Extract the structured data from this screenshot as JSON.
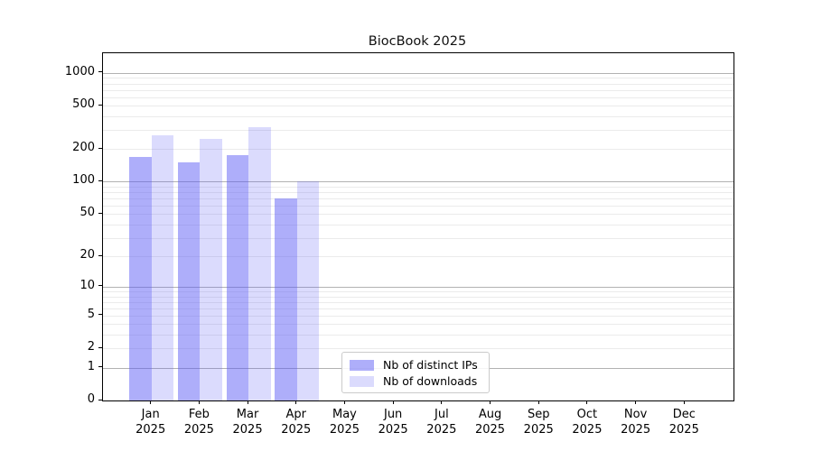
{
  "chart_data": {
    "type": "bar",
    "title": "BiocBook 2025",
    "xlabel": "",
    "ylabel": "",
    "categories": [
      "Jan 2025",
      "Feb 2025",
      "Mar 2025",
      "Apr 2025",
      "May 2025",
      "Jun 2025",
      "Jul 2025",
      "Aug 2025",
      "Sep 2025",
      "Oct 2025",
      "Nov 2025",
      "Dec 2025"
    ],
    "series": [
      {
        "name": "Nb of distinct IPs",
        "color": "rgba(85,85,245,0.48)",
        "values": [
          170,
          150,
          175,
          70,
          null,
          null,
          null,
          null,
          null,
          null,
          null,
          null
        ]
      },
      {
        "name": "Nb of downloads",
        "color": "rgba(85,85,245,0.21)",
        "values": [
          270,
          250,
          320,
          100,
          null,
          null,
          null,
          null,
          null,
          null,
          null,
          null
        ]
      }
    ],
    "yscale": "log1p",
    "yticks": [
      0,
      1,
      2,
      5,
      10,
      20,
      50,
      100,
      200,
      500,
      1000
    ],
    "ylim": [
      0,
      1450
    ],
    "grid": "horizontal, light minors + gray majors at powers of 10",
    "legend_position": "inside bottom-center-left",
    "colors": {
      "major_gridline": "#b2b2b2",
      "minor_gridline": "#ebebeb",
      "axis": "#000000"
    }
  }
}
